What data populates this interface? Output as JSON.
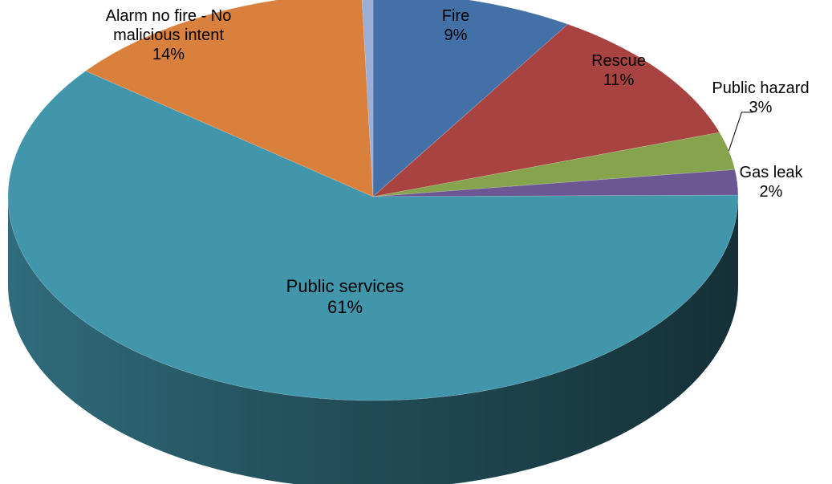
{
  "chart_data": {
    "type": "pie",
    "style": "3d",
    "slices": [
      {
        "name": "Fire",
        "value": 9,
        "value_label": "9%",
        "color": "#4470A8"
      },
      {
        "name": "Rescue",
        "value": 11,
        "value_label": "11%",
        "color": "#A84342"
      },
      {
        "name": "Public hazard",
        "value": 3,
        "value_label": "3%",
        "color": "#86A44D"
      },
      {
        "name": "Gas leak",
        "value": 2,
        "value_label": "2%",
        "color": "#6C5694"
      },
      {
        "name": "Public services",
        "value": 61,
        "value_label": "61%",
        "color": "#4296AC"
      },
      {
        "name": "Alarm no fire - No malicious intent",
        "name_lines": [
          "Alarm no fire - No",
          "malicious intent"
        ],
        "value": 14,
        "value_label": "14%",
        "color": "#D9803D"
      },
      {
        "name": "",
        "value": 0.5,
        "value_label": "",
        "color": "#9BAED6"
      }
    ]
  }
}
